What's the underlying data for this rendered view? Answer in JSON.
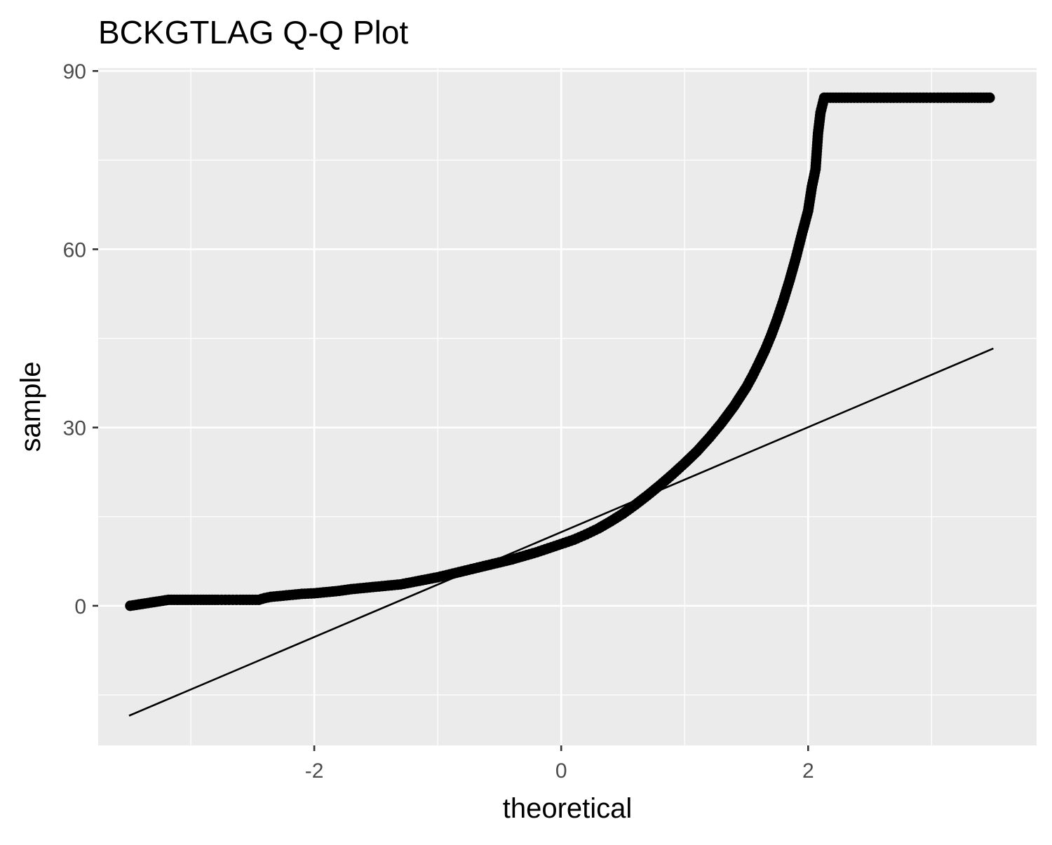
{
  "chart_data": {
    "type": "scatter",
    "title": "BCKGTLAG Q-Q Plot",
    "xlabel": "theoretical",
    "ylabel": "sample",
    "xlim": [
      -3.75,
      3.85
    ],
    "ylim": [
      -23.5,
      90.5
    ],
    "x_ticks": [
      -2,
      0,
      2
    ],
    "x_tick_labels": [
      "-2",
      "0",
      "2"
    ],
    "y_ticks": [
      0,
      30,
      60,
      90
    ],
    "y_tick_labels": [
      "0",
      "30",
      "60",
      "90"
    ],
    "x_minor_ticks": [
      -3,
      -1,
      1,
      3
    ],
    "y_minor_ticks": [
      -15,
      15,
      45,
      75
    ],
    "grid": true,
    "legend": "none",
    "background": "#ebebeb",
    "point_color": "#000000",
    "line_color": "#000000",
    "reference_line": {
      "x": [
        -3.5,
        3.5
      ],
      "y": [
        -18.5,
        43.3
      ]
    },
    "series": [
      {
        "values": [
          [
            -3.49,
            0.0
          ],
          [
            -3.18,
            1.0
          ],
          [
            -3.02,
            1.0
          ],
          [
            -2.92,
            1.0
          ],
          [
            -2.85,
            1.0
          ],
          [
            -2.78,
            1.0
          ],
          [
            -2.72,
            1.0
          ],
          [
            -2.66,
            1.0
          ],
          [
            -2.6,
            1.0
          ],
          [
            -2.55,
            1.0
          ],
          [
            -2.5,
            1.0
          ],
          [
            -2.45,
            1.0
          ],
          [
            -2.4,
            1.3
          ],
          [
            -2.35,
            1.5
          ],
          [
            -2.3,
            1.6
          ],
          [
            -2.25,
            1.7
          ],
          [
            -2.2,
            1.8
          ],
          [
            -2.15,
            1.9
          ],
          [
            -2.1,
            2.0
          ],
          [
            -2.05,
            2.05
          ],
          [
            -2.0,
            2.1
          ],
          [
            -1.9,
            2.3
          ],
          [
            -1.8,
            2.5
          ],
          [
            -1.7,
            2.8
          ],
          [
            -1.6,
            3.0
          ],
          [
            -1.5,
            3.2
          ],
          [
            -1.4,
            3.4
          ],
          [
            -1.3,
            3.6
          ],
          [
            -1.2,
            4.0
          ],
          [
            -1.1,
            4.4
          ],
          [
            -1.0,
            4.8
          ],
          [
            -0.9,
            5.3
          ],
          [
            -0.8,
            5.8
          ],
          [
            -0.7,
            6.3
          ],
          [
            -0.6,
            6.8
          ],
          [
            -0.5,
            7.3
          ],
          [
            -0.4,
            7.8
          ],
          [
            -0.3,
            8.4
          ],
          [
            -0.2,
            9.0
          ],
          [
            -0.1,
            9.7
          ],
          [
            0.0,
            10.4
          ],
          [
            0.1,
            11.1
          ],
          [
            0.2,
            12.0
          ],
          [
            0.3,
            13.0
          ],
          [
            0.4,
            14.2
          ],
          [
            0.5,
            15.5
          ],
          [
            0.6,
            17.0
          ],
          [
            0.7,
            18.6
          ],
          [
            0.8,
            20.3
          ],
          [
            0.9,
            22.1
          ],
          [
            1.0,
            24.0
          ],
          [
            1.1,
            26.0
          ],
          [
            1.2,
            28.3
          ],
          [
            1.3,
            30.8
          ],
          [
            1.4,
            33.6
          ],
          [
            1.5,
            36.8
          ],
          [
            1.55,
            38.7
          ],
          [
            1.6,
            40.8
          ],
          [
            1.65,
            43.0
          ],
          [
            1.7,
            45.5
          ],
          [
            1.75,
            48.3
          ],
          [
            1.8,
            51.4
          ],
          [
            1.85,
            54.8
          ],
          [
            1.9,
            58.5
          ],
          [
            1.95,
            62.6
          ],
          [
            2.0,
            66.5
          ],
          [
            2.03,
            70.5
          ],
          [
            2.06,
            73.5
          ],
          [
            2.08,
            79.5
          ],
          [
            2.1,
            83.0
          ],
          [
            2.13,
            85.5
          ],
          [
            2.18,
            85.5
          ],
          [
            2.25,
            85.5
          ],
          [
            2.32,
            85.5
          ],
          [
            2.4,
            85.5
          ],
          [
            2.48,
            85.5
          ],
          [
            2.56,
            85.5
          ],
          [
            2.64,
            85.5
          ],
          [
            2.72,
            85.5
          ],
          [
            2.8,
            85.5
          ],
          [
            2.88,
            85.5
          ],
          [
            2.96,
            85.5
          ],
          [
            3.05,
            85.5
          ],
          [
            3.18,
            85.5
          ],
          [
            3.47,
            85.5
          ]
        ]
      }
    ]
  }
}
